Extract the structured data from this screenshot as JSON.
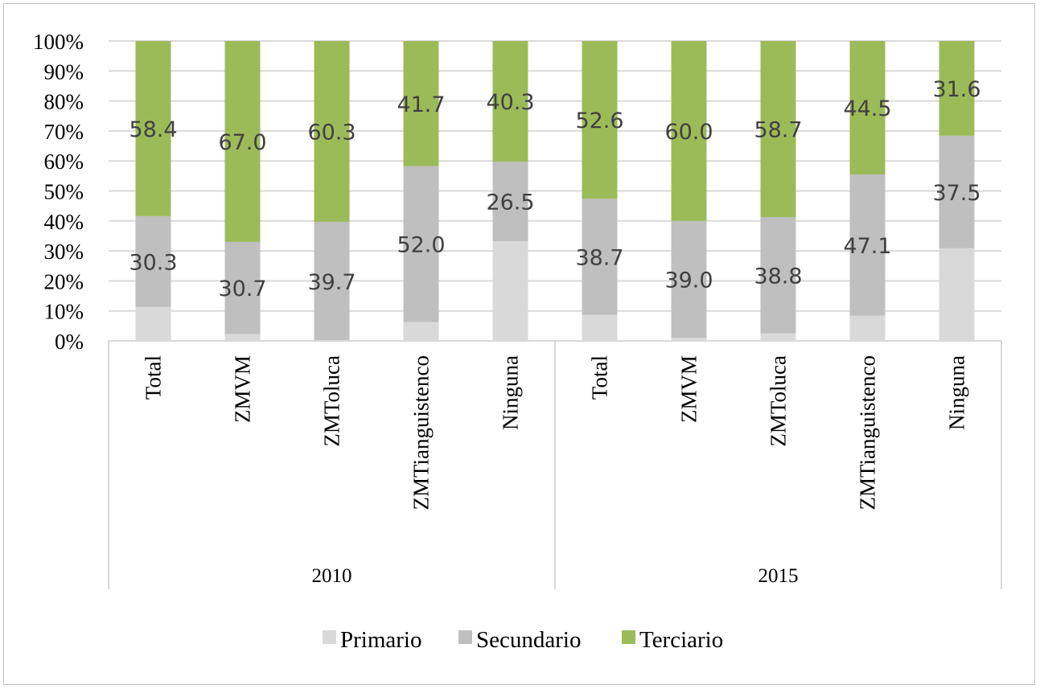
{
  "chart_data": {
    "type": "bar",
    "stacked": true,
    "percent_stacked": true,
    "title": "",
    "xlabel": "",
    "ylabel": "",
    "ylim": [
      0,
      100
    ],
    "y_ticks": [
      "0%",
      "10%",
      "20%",
      "30%",
      "40%",
      "50%",
      "60%",
      "70%",
      "80%",
      "90%",
      "100%"
    ],
    "grid": true,
    "legend_position": "bottom",
    "groups": [
      {
        "label": "2010",
        "categories": [
          "Total",
          "ZMVM",
          "ZMToluca",
          "ZMTianguistenco",
          "Ninguna"
        ]
      },
      {
        "label": "2015",
        "categories": [
          "Total",
          "ZMVM",
          "ZMToluca",
          "ZMTianguistenco",
          "Ninguna"
        ]
      }
    ],
    "categories": [
      "Total",
      "ZMVM",
      "ZMToluca",
      "ZMTianguistenco",
      "Ninguna",
      "Total",
      "ZMVM",
      "ZMToluca",
      "ZMTianguistenco",
      "Ninguna"
    ],
    "series": [
      {
        "name": "Primario",
        "color": "#d9d9d9",
        "values": [
          11.3,
          2.3,
          0.0,
          6.3,
          33.2,
          8.7,
          1.0,
          2.5,
          8.4,
          30.9
        ],
        "labels": [
          "",
          "",
          "",
          "",
          "",
          "",
          "",
          "",
          "",
          ""
        ]
      },
      {
        "name": "Secundario",
        "color": "#bfbfbf",
        "values": [
          30.3,
          30.7,
          39.7,
          52.0,
          26.5,
          38.7,
          39.0,
          38.8,
          47.1,
          37.5
        ],
        "labels": [
          "30.3",
          "30.7",
          "39.7",
          "52.0",
          "26.5",
          "38.7",
          "39.0",
          "38.8",
          "47.1",
          "37.5"
        ]
      },
      {
        "name": "Terciario",
        "color": "#9bbb59",
        "values": [
          58.4,
          67.0,
          60.3,
          41.7,
          40.3,
          52.6,
          60.0,
          58.7,
          44.5,
          31.6
        ],
        "labels": [
          "58.4",
          "67.0",
          "60.3",
          "41.7",
          "40.3",
          "52.6",
          "60.0",
          "58.7",
          "44.5",
          "31.6"
        ]
      }
    ]
  }
}
